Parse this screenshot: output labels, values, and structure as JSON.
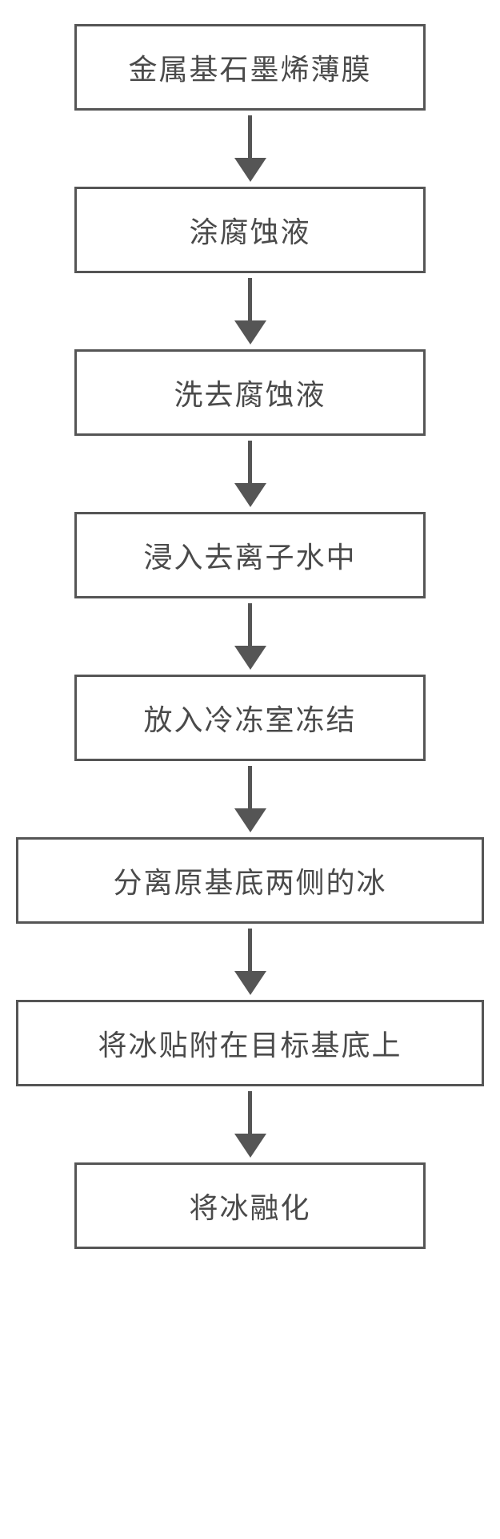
{
  "flowchart": {
    "type": "flowchart",
    "direction": "vertical",
    "background_color": "#ffffff",
    "border_color": "#555555",
    "border_width": 3,
    "text_color": "#4a4a4a",
    "arrow_color": "#555555",
    "font_size": 36,
    "steps": [
      {
        "label": "金属基石墨烯薄膜",
        "width": "narrow"
      },
      {
        "label": "涂腐蚀液",
        "width": "narrow"
      },
      {
        "label": "洗去腐蚀液",
        "width": "narrow"
      },
      {
        "label": "浸入去离子水中",
        "width": "narrow"
      },
      {
        "label": "放入冷冻室冻结",
        "width": "narrow"
      },
      {
        "label": "分离原基底两侧的冰",
        "width": "wide"
      },
      {
        "label": "将冰贴附在目标基底上",
        "width": "wide"
      },
      {
        "label": "将冰融化",
        "width": "narrow"
      }
    ]
  }
}
